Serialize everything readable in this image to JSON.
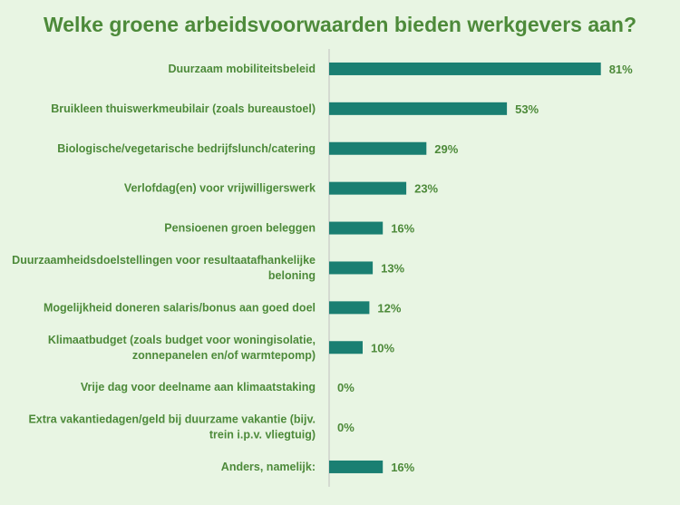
{
  "title": "Welke groene arbeidsvoorwaarden bieden werkgevers aan?",
  "colors": {
    "bar": "#1a7f72",
    "text": "#4d8a3a",
    "background": "#e8f5e3"
  },
  "chart_data": {
    "type": "bar",
    "orientation": "horizontal",
    "title": "Welke groene arbeidsvoorwaarden bieden werkgevers aan?",
    "xlim": [
      0,
      100
    ],
    "grid": false,
    "legend": "none",
    "categories": [
      [
        "Duurzaam mobiliteitsbeleid"
      ],
      [
        "Bruikleen thuiswerkmeubilair (zoals bureaustoel)"
      ],
      [
        "Biologische/vegetarische bedrijfslunch/catering"
      ],
      [
        "Verlofdag(en) voor vrijwilligerswerk"
      ],
      [
        "Pensioenen groen beleggen"
      ],
      [
        "Duurzaamheidsdoelstellingen voor resultaatafhankelijke",
        "beloning"
      ],
      [
        "Mogelijkheid doneren salaris/bonus aan goed doel"
      ],
      [
        "Klimaatbudget (zoals budget voor woningisolatie,",
        "zonnepanelen en/of warmtepomp)"
      ],
      [
        "Vrije dag voor deelname aan klimaatstaking"
      ],
      [
        "Extra vakantiedagen/geld bij duurzame vakantie (bijv.",
        "trein i.p.v. vliegtuig)"
      ],
      [
        "Anders, namelijk:"
      ]
    ],
    "values": [
      81,
      53,
      29,
      23,
      16,
      13,
      12,
      10,
      0,
      0,
      16
    ],
    "value_labels": [
      "81%",
      "53%",
      "29%",
      "23%",
      "16%",
      "13%",
      "12%",
      "10%",
      "0%",
      "0%",
      "16%"
    ]
  }
}
